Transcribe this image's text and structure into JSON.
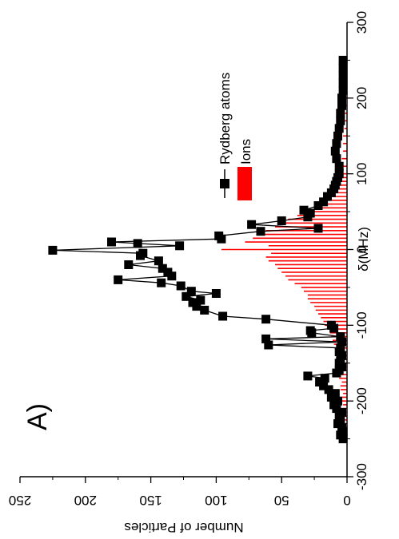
{
  "chart_data": {
    "type": "line",
    "panel_label": "A)",
    "xlabel": "δ(MHz)",
    "ylabel": "Number  of  Particles",
    "xlim": [
      -300,
      300
    ],
    "ylim": [
      0,
      250
    ],
    "x_ticks": [
      -300,
      -200,
      -100,
      0,
      100,
      200,
      300
    ],
    "y_ticks": [
      0,
      50,
      100,
      150,
      200,
      250
    ],
    "orientation": "rotated 90 degrees counter-clockwise",
    "legend_position": "upper-right",
    "series": [
      {
        "name": "Rydberg atoms",
        "style": "line with filled square markers",
        "color": "#000000",
        "points": [
          [
            -250,
            3
          ],
          [
            -245,
            5
          ],
          [
            -240,
            3
          ],
          [
            -235,
            4
          ],
          [
            -230,
            7
          ],
          [
            -225,
            5
          ],
          [
            -220,
            6
          ],
          [
            -215,
            4
          ],
          [
            -210,
            8
          ],
          [
            -205,
            10
          ],
          [
            -200,
            7
          ],
          [
            -195,
            12
          ],
          [
            -190,
            9
          ],
          [
            -185,
            14
          ],
          [
            -180,
            18
          ],
          [
            -175,
            21
          ],
          [
            -170,
            17
          ],
          [
            -167,
            30
          ],
          [
            -163,
            8
          ],
          [
            -160,
            6
          ],
          [
            -155,
            4
          ],
          [
            -150,
            6
          ],
          [
            -145,
            5
          ],
          [
            -140,
            4
          ],
          [
            -135,
            6
          ],
          [
            -130,
            5
          ],
          [
            -126,
            60
          ],
          [
            -122,
            4
          ],
          [
            -118,
            62
          ],
          [
            -115,
            5
          ],
          [
            -110,
            27
          ],
          [
            -107,
            28
          ],
          [
            -104,
            10
          ],
          [
            -100,
            12
          ],
          [
            -92,
            62
          ],
          [
            -88,
            95
          ],
          [
            -80,
            109
          ],
          [
            -75,
            115
          ],
          [
            -70,
            118
          ],
          [
            -67,
            112
          ],
          [
            -62,
            123
          ],
          [
            -58,
            100
          ],
          [
            -55,
            119
          ],
          [
            -48,
            127
          ],
          [
            -44,
            142
          ],
          [
            -40,
            175
          ],
          [
            -35,
            134
          ],
          [
            -30,
            137
          ],
          [
            -25,
            141
          ],
          [
            -20,
            167
          ],
          [
            -15,
            144
          ],
          [
            -8,
            158
          ],
          [
            -5,
            156
          ],
          [
            -1,
            225
          ],
          [
            5,
            128
          ],
          [
            8,
            160
          ],
          [
            10,
            180
          ],
          [
            14,
            96
          ],
          [
            18,
            98
          ],
          [
            24,
            66
          ],
          [
            28,
            22
          ],
          [
            33,
            73
          ],
          [
            38,
            50
          ],
          [
            43,
            30
          ],
          [
            48,
            28
          ],
          [
            52,
            33
          ],
          [
            58,
            22
          ],
          [
            63,
            18
          ],
          [
            70,
            15
          ],
          [
            75,
            12
          ],
          [
            80,
            10
          ],
          [
            85,
            9
          ],
          [
            90,
            8
          ],
          [
            95,
            7
          ],
          [
            100,
            6
          ],
          [
            110,
            6
          ],
          [
            120,
            8
          ],
          [
            130,
            9
          ],
          [
            140,
            8
          ],
          [
            150,
            7
          ],
          [
            160,
            6
          ],
          [
            170,
            5
          ],
          [
            180,
            5
          ],
          [
            190,
            4
          ],
          [
            200,
            4
          ],
          [
            210,
            3
          ],
          [
            220,
            3
          ],
          [
            230,
            3
          ],
          [
            240,
            3
          ],
          [
            250,
            3
          ]
        ]
      },
      {
        "name": "Ions",
        "style": "bars",
        "color": "#ff0000",
        "points": [
          [
            -250,
            3
          ],
          [
            -245,
            2
          ],
          [
            -240,
            3
          ],
          [
            -235,
            3
          ],
          [
            -230,
            2
          ],
          [
            -225,
            3
          ],
          [
            -220,
            4
          ],
          [
            -215,
            3
          ],
          [
            -210,
            4
          ],
          [
            -205,
            3
          ],
          [
            -200,
            4
          ],
          [
            -195,
            4
          ],
          [
            -190,
            3
          ],
          [
            -185,
            5
          ],
          [
            -180,
            5
          ],
          [
            -175,
            4
          ],
          [
            -170,
            6
          ],
          [
            -165,
            5
          ],
          [
            -160,
            6
          ],
          [
            -155,
            5
          ],
          [
            -150,
            6
          ],
          [
            -145,
            7
          ],
          [
            -140,
            7
          ],
          [
            -135,
            8
          ],
          [
            -130,
            9
          ],
          [
            -125,
            10
          ],
          [
            -120,
            11
          ],
          [
            -115,
            12
          ],
          [
            -110,
            13
          ],
          [
            -105,
            15
          ],
          [
            -100,
            17
          ],
          [
            -95,
            18
          ],
          [
            -90,
            20
          ],
          [
            -85,
            22
          ],
          [
            -80,
            24
          ],
          [
            -75,
            25
          ],
          [
            -70,
            28
          ],
          [
            -65,
            30
          ],
          [
            -60,
            30
          ],
          [
            -55,
            33
          ],
          [
            -50,
            35
          ],
          [
            -45,
            40
          ],
          [
            -40,
            45
          ],
          [
            -35,
            47
          ],
          [
            -30,
            50
          ],
          [
            -25,
            53
          ],
          [
            -20,
            55
          ],
          [
            -15,
            60
          ],
          [
            -10,
            62
          ],
          [
            -5,
            58
          ],
          [
            0,
            96
          ],
          [
            5,
            60
          ],
          [
            10,
            78
          ],
          [
            15,
            72
          ],
          [
            20,
            65
          ],
          [
            25,
            62
          ],
          [
            30,
            55
          ],
          [
            35,
            50
          ],
          [
            40,
            45
          ],
          [
            45,
            38
          ],
          [
            50,
            32
          ],
          [
            55,
            25
          ],
          [
            60,
            20
          ],
          [
            65,
            16
          ],
          [
            70,
            13
          ],
          [
            75,
            11
          ],
          [
            80,
            9
          ],
          [
            85,
            7
          ],
          [
            90,
            6
          ],
          [
            95,
            5
          ],
          [
            100,
            5
          ],
          [
            110,
            4
          ],
          [
            120,
            4
          ],
          [
            130,
            3
          ],
          [
            140,
            3
          ],
          [
            150,
            3
          ],
          [
            160,
            2
          ],
          [
            170,
            2
          ],
          [
            180,
            2
          ],
          [
            190,
            2
          ],
          [
            200,
            2
          ],
          [
            210,
            2
          ],
          [
            220,
            2
          ],
          [
            230,
            2
          ],
          [
            240,
            2
          ],
          [
            250,
            2
          ]
        ]
      }
    ]
  }
}
